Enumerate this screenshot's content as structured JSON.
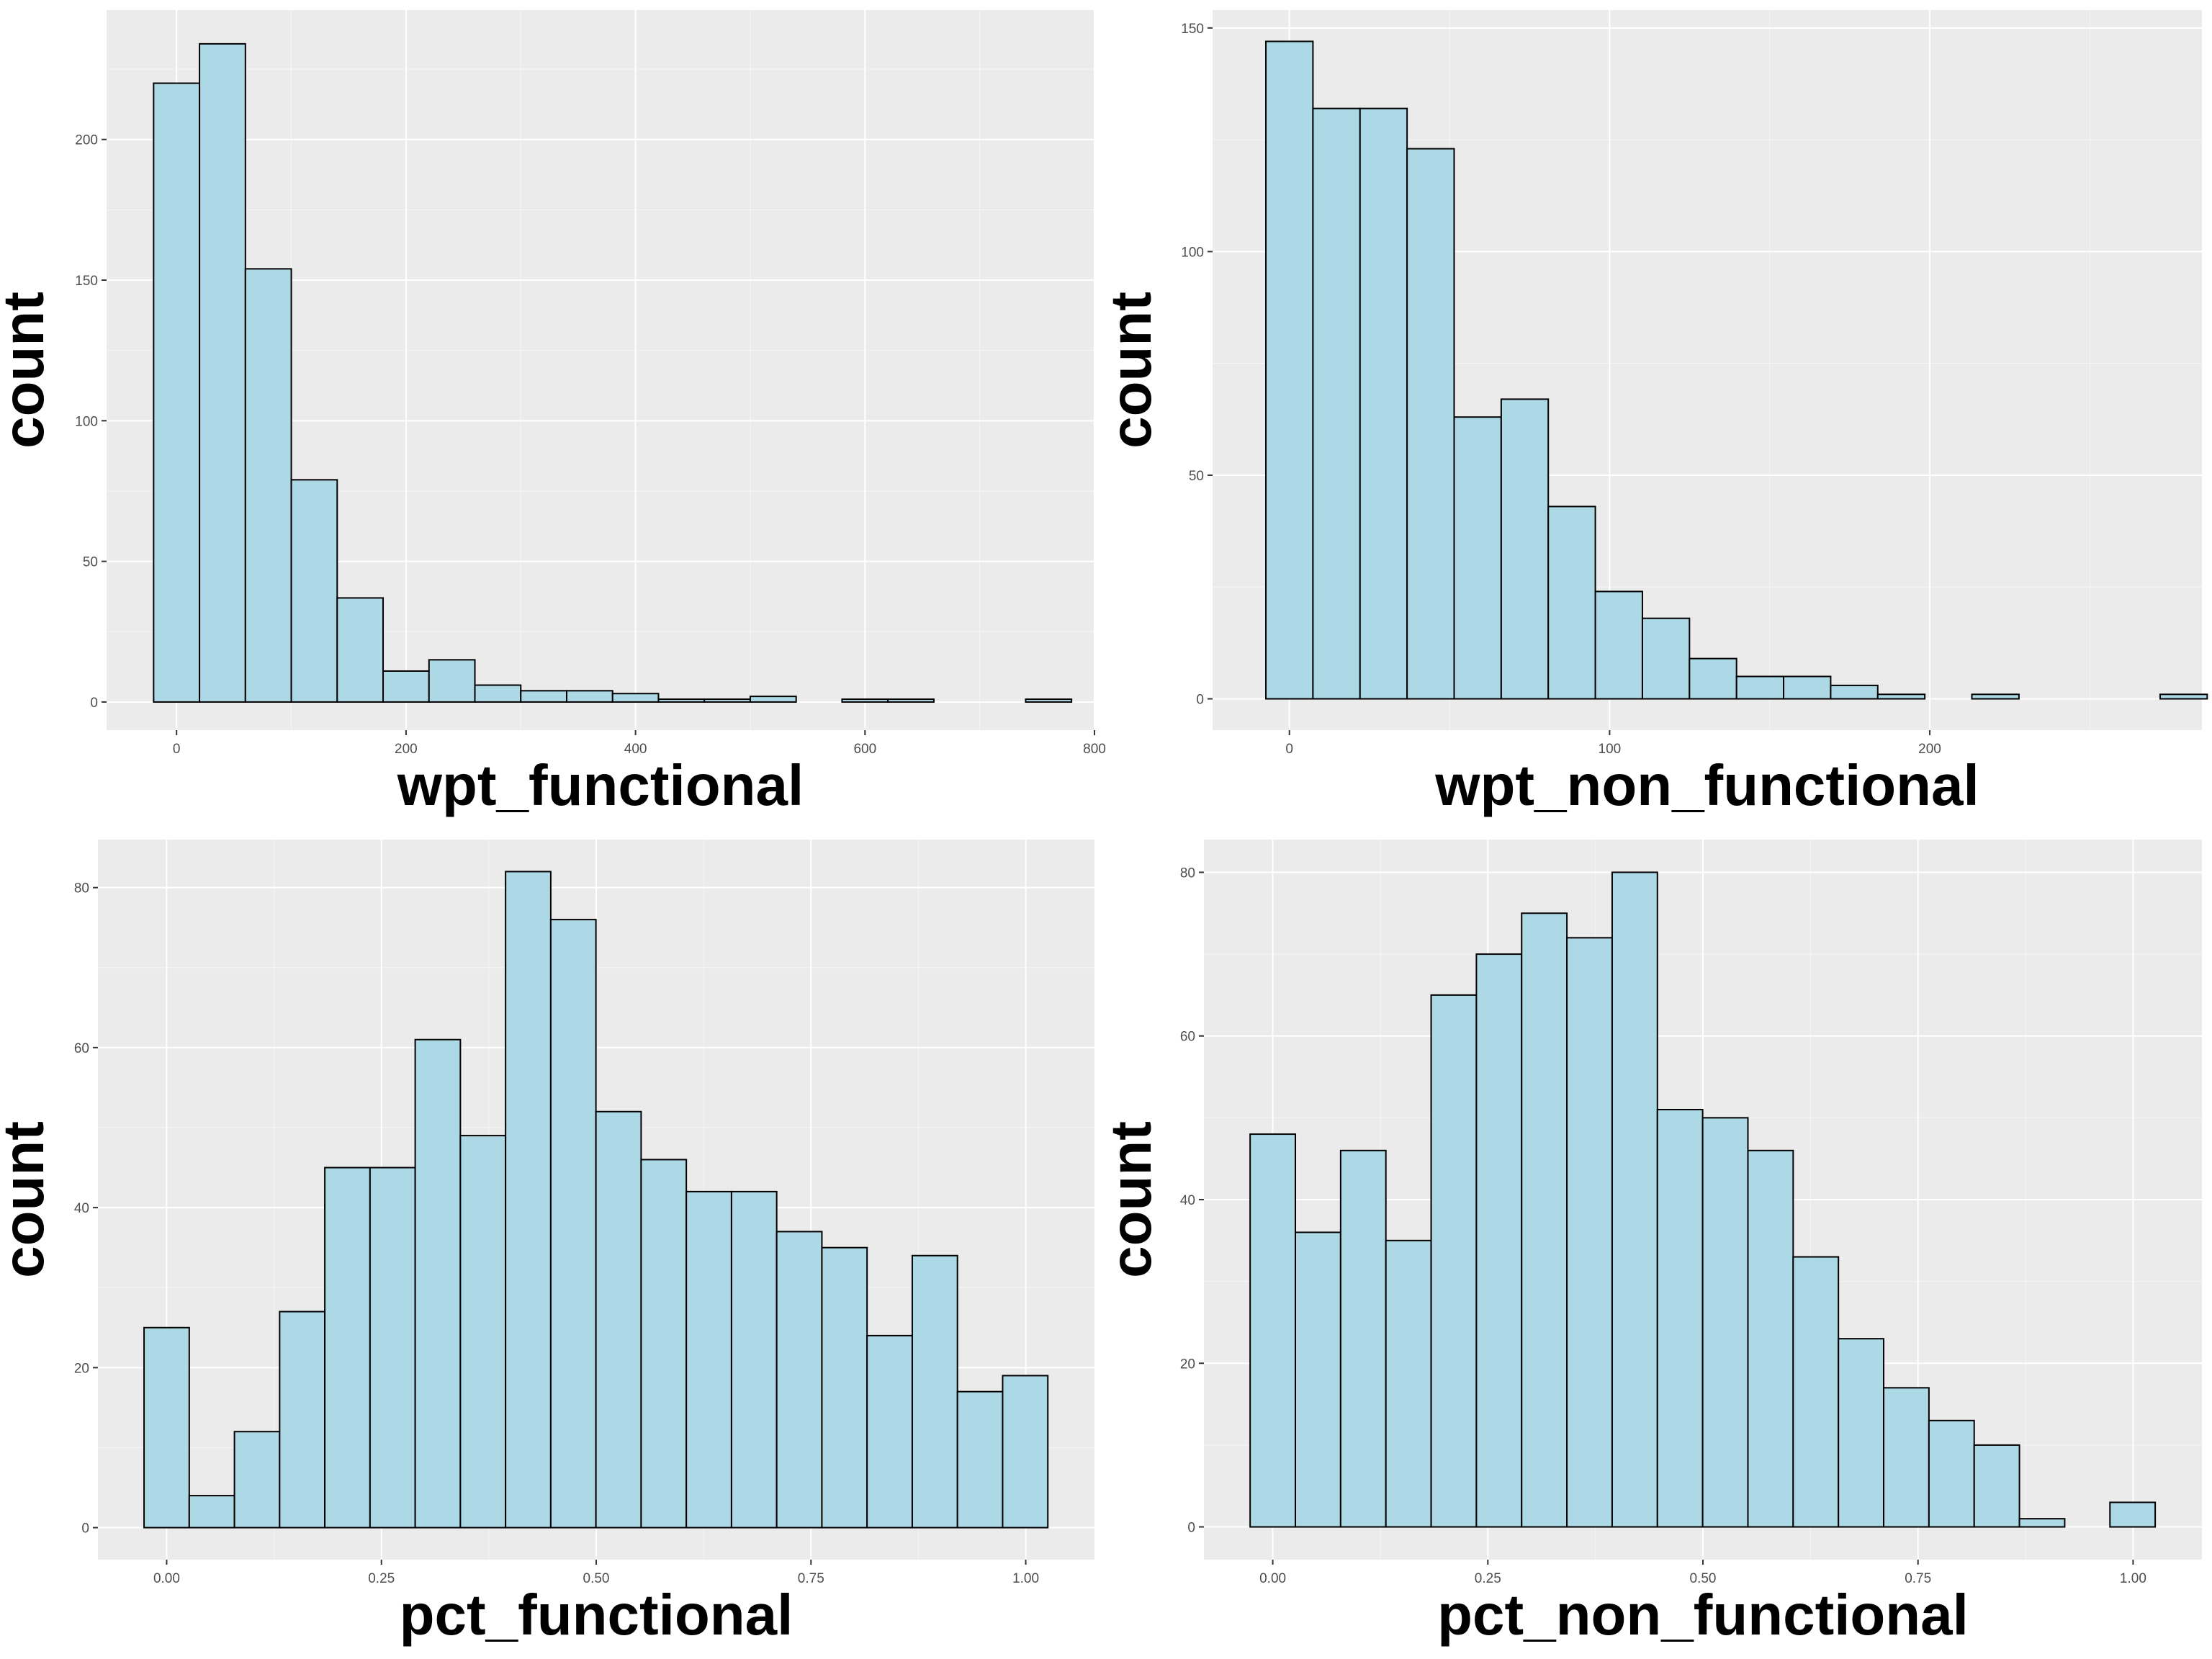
{
  "colors": {
    "panel_background": "#ebebeb",
    "grid_major": "#ffffff",
    "bar_fill": "#add8e6",
    "bar_outline": "#000000",
    "tick_text": "#4d4d4d"
  },
  "chart_data": [
    {
      "type": "bar",
      "subtype": "histogram",
      "xlabel": "wpt_functional",
      "ylabel": "count",
      "grid": true,
      "xlim": [
        -61,
        800
      ],
      "ylim": [
        -10,
        246
      ],
      "x_ticks": [
        0,
        200,
        400,
        600,
        800
      ],
      "y_ticks": [
        0,
        50,
        100,
        150,
        200
      ],
      "bin_width": 40,
      "bin_start": -20,
      "values": [
        220,
        234,
        154,
        79,
        37,
        11,
        15,
        6,
        4,
        4,
        3,
        1,
        1,
        2,
        0,
        1,
        1,
        0,
        0,
        1
      ]
    },
    {
      "type": "bar",
      "subtype": "histogram",
      "xlabel": "wpt_non_functional",
      "ylabel": "count",
      "grid": true,
      "xlim": [
        -24,
        285
      ],
      "ylim": [
        -7,
        154
      ],
      "x_ticks": [
        0,
        100,
        200
      ],
      "y_ticks": [
        0,
        50,
        100,
        150
      ],
      "bin_width": 14.7,
      "bin_start": -7.35,
      "values": [
        147,
        132,
        132,
        123,
        63,
        67,
        43,
        24,
        18,
        9,
        5,
        5,
        3,
        1,
        0,
        1,
        0,
        0,
        0,
        1
      ]
    },
    {
      "type": "bar",
      "subtype": "histogram",
      "xlabel": "pct_functional",
      "ylabel": "count",
      "grid": true,
      "xlim": [
        -0.08,
        1.08
      ],
      "ylim": [
        -4,
        86
      ],
      "x_ticks": [
        "0.00",
        "0.25",
        "0.50",
        "0.75",
        "1.00"
      ],
      "y_ticks": [
        0,
        20,
        40,
        60,
        80
      ],
      "bin_width": 0.0526,
      "bin_start": -0.0263,
      "values": [
        25,
        4,
        12,
        27,
        45,
        45,
        61,
        49,
        82,
        76,
        52,
        46,
        42,
        42,
        37,
        35,
        24,
        34,
        17,
        19
      ]
    },
    {
      "type": "bar",
      "subtype": "histogram",
      "xlabel": "pct_non_functional",
      "ylabel": "count",
      "grid": true,
      "xlim": [
        -0.08,
        1.08
      ],
      "ylim": [
        -4,
        84
      ],
      "x_ticks": [
        "0.00",
        "0.25",
        "0.50",
        "0.75",
        "1.00"
      ],
      "y_ticks": [
        0,
        20,
        40,
        60,
        80
      ],
      "bin_width": 0.0526,
      "bin_start": -0.0263,
      "values": [
        48,
        36,
        46,
        35,
        65,
        70,
        75,
        72,
        80,
        51,
        50,
        46,
        33,
        23,
        17,
        13,
        10,
        1,
        0,
        3
      ]
    }
  ]
}
